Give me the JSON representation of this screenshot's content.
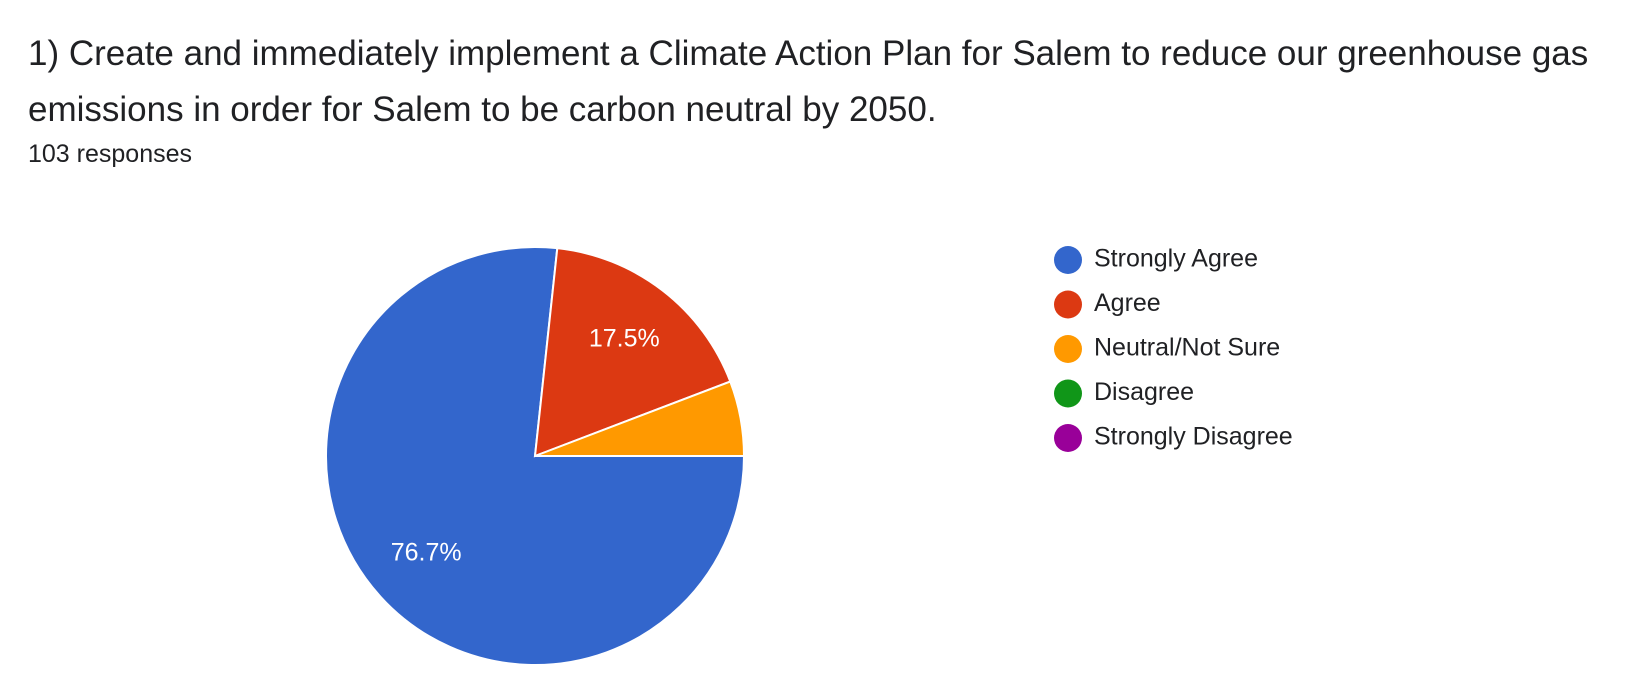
{
  "chart_data": {
    "type": "pie",
    "title": "1) Create and immediately implement a Climate Action Plan for Salem to reduce our greenhouse gas emissions in order for Salem to be carbon neutral by 2050.",
    "subtitle": "103 responses",
    "categories": [
      "Strongly Agree",
      "Agree",
      "Neutral/Not Sure",
      "Disagree",
      "Strongly Disagree"
    ],
    "values": [
      76.7,
      17.5,
      5.8,
      0,
      0
    ],
    "value_labels": [
      "76.7%",
      "17.5%",
      null,
      null,
      null
    ],
    "colors": [
      "#3366cc",
      "#dc3912",
      "#ff9900",
      "#109618",
      "#990099"
    ],
    "legend": "right"
  }
}
